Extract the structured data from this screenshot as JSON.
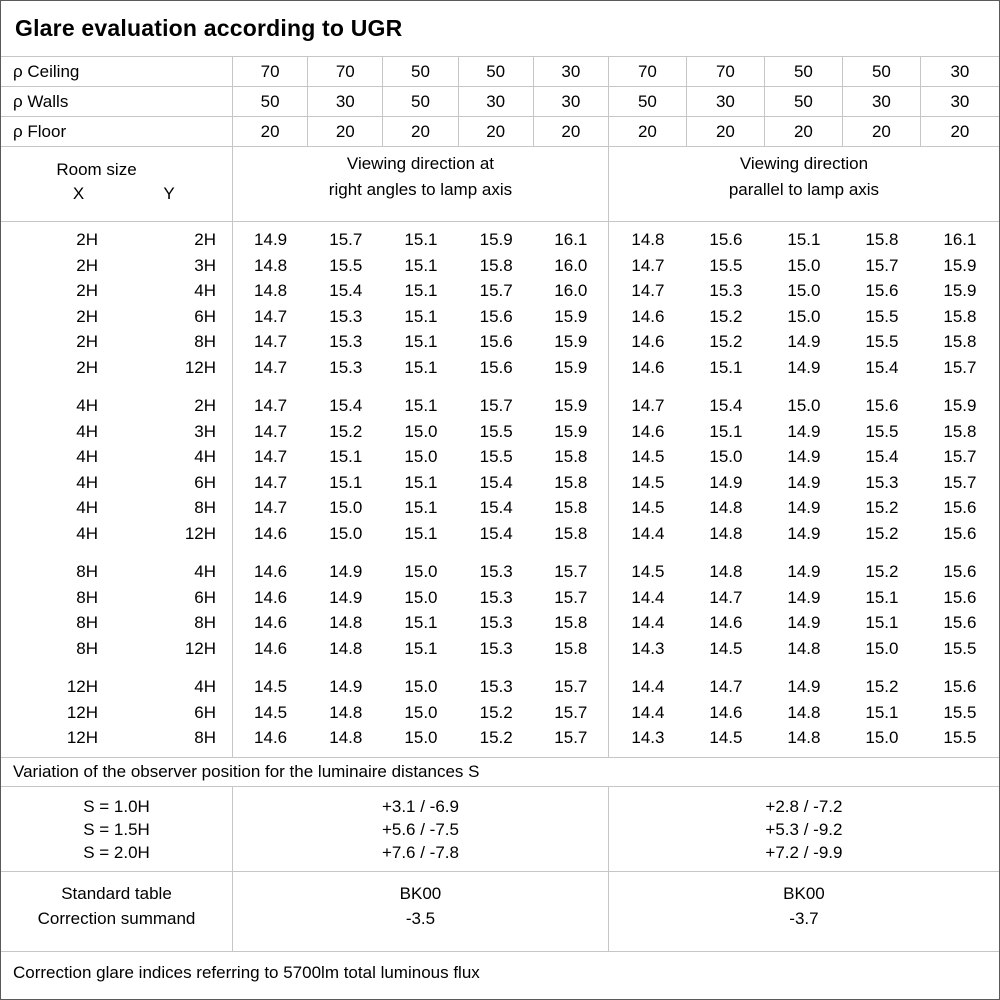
{
  "title": "Glare evaluation according to UGR",
  "reflectance_rows": [
    {
      "label": "ρ Ceiling",
      "values": [
        "70",
        "70",
        "50",
        "50",
        "30",
        "70",
        "70",
        "50",
        "50",
        "30"
      ]
    },
    {
      "label": "ρ Walls",
      "values": [
        "50",
        "30",
        "50",
        "30",
        "30",
        "50",
        "30",
        "50",
        "30",
        "30"
      ]
    },
    {
      "label": "ρ Floor",
      "values": [
        "20",
        "20",
        "20",
        "20",
        "20",
        "20",
        "20",
        "20",
        "20",
        "20"
      ]
    }
  ],
  "room_size": {
    "title": "Room size",
    "x": "X",
    "y": "Y"
  },
  "viewing_headers": {
    "right_angles": "Viewing direction at\nright angles to lamp axis",
    "parallel": "Viewing direction\nparallel to lamp axis"
  },
  "ugr_groups": [
    {
      "rows": [
        {
          "x": "2H",
          "y": "2H",
          "values": [
            "14.9",
            "15.7",
            "15.1",
            "15.9",
            "16.1",
            "14.8",
            "15.6",
            "15.1",
            "15.8",
            "16.1"
          ]
        },
        {
          "x": "2H",
          "y": "3H",
          "values": [
            "14.8",
            "15.5",
            "15.1",
            "15.8",
            "16.0",
            "14.7",
            "15.5",
            "15.0",
            "15.7",
            "15.9"
          ]
        },
        {
          "x": "2H",
          "y": "4H",
          "values": [
            "14.8",
            "15.4",
            "15.1",
            "15.7",
            "16.0",
            "14.7",
            "15.3",
            "15.0",
            "15.6",
            "15.9"
          ]
        },
        {
          "x": "2H",
          "y": "6H",
          "values": [
            "14.7",
            "15.3",
            "15.1",
            "15.6",
            "15.9",
            "14.6",
            "15.2",
            "15.0",
            "15.5",
            "15.8"
          ]
        },
        {
          "x": "2H",
          "y": "8H",
          "values": [
            "14.7",
            "15.3",
            "15.1",
            "15.6",
            "15.9",
            "14.6",
            "15.2",
            "14.9",
            "15.5",
            "15.8"
          ]
        },
        {
          "x": "2H",
          "y": "12H",
          "values": [
            "14.7",
            "15.3",
            "15.1",
            "15.6",
            "15.9",
            "14.6",
            "15.1",
            "14.9",
            "15.4",
            "15.7"
          ]
        }
      ]
    },
    {
      "rows": [
        {
          "x": "4H",
          "y": "2H",
          "values": [
            "14.7",
            "15.4",
            "15.1",
            "15.7",
            "15.9",
            "14.7",
            "15.4",
            "15.0",
            "15.6",
            "15.9"
          ]
        },
        {
          "x": "4H",
          "y": "3H",
          "values": [
            "14.7",
            "15.2",
            "15.0",
            "15.5",
            "15.9",
            "14.6",
            "15.1",
            "14.9",
            "15.5",
            "15.8"
          ]
        },
        {
          "x": "4H",
          "y": "4H",
          "values": [
            "14.7",
            "15.1",
            "15.0",
            "15.5",
            "15.8",
            "14.5",
            "15.0",
            "14.9",
            "15.4",
            "15.7"
          ]
        },
        {
          "x": "4H",
          "y": "6H",
          "values": [
            "14.7",
            "15.1",
            "15.1",
            "15.4",
            "15.8",
            "14.5",
            "14.9",
            "14.9",
            "15.3",
            "15.7"
          ]
        },
        {
          "x": "4H",
          "y": "8H",
          "values": [
            "14.7",
            "15.0",
            "15.1",
            "15.4",
            "15.8",
            "14.5",
            "14.8",
            "14.9",
            "15.2",
            "15.6"
          ]
        },
        {
          "x": "4H",
          "y": "12H",
          "values": [
            "14.6",
            "15.0",
            "15.1",
            "15.4",
            "15.8",
            "14.4",
            "14.8",
            "14.9",
            "15.2",
            "15.6"
          ]
        }
      ]
    },
    {
      "rows": [
        {
          "x": "8H",
          "y": "4H",
          "values": [
            "14.6",
            "14.9",
            "15.0",
            "15.3",
            "15.7",
            "14.5",
            "14.8",
            "14.9",
            "15.2",
            "15.6"
          ]
        },
        {
          "x": "8H",
          "y": "6H",
          "values": [
            "14.6",
            "14.9",
            "15.0",
            "15.3",
            "15.7",
            "14.4",
            "14.7",
            "14.9",
            "15.1",
            "15.6"
          ]
        },
        {
          "x": "8H",
          "y": "8H",
          "values": [
            "14.6",
            "14.8",
            "15.1",
            "15.3",
            "15.8",
            "14.4",
            "14.6",
            "14.9",
            "15.1",
            "15.6"
          ]
        },
        {
          "x": "8H",
          "y": "12H",
          "values": [
            "14.6",
            "14.8",
            "15.1",
            "15.3",
            "15.8",
            "14.3",
            "14.5",
            "14.8",
            "15.0",
            "15.5"
          ]
        }
      ]
    },
    {
      "rows": [
        {
          "x": "12H",
          "y": "4H",
          "values": [
            "14.5",
            "14.9",
            "15.0",
            "15.3",
            "15.7",
            "14.4",
            "14.7",
            "14.9",
            "15.2",
            "15.6"
          ]
        },
        {
          "x": "12H",
          "y": "6H",
          "values": [
            "14.5",
            "14.8",
            "15.0",
            "15.2",
            "15.7",
            "14.4",
            "14.6",
            "14.8",
            "15.1",
            "15.5"
          ]
        },
        {
          "x": "12H",
          "y": "8H",
          "values": [
            "14.6",
            "14.8",
            "15.0",
            "15.2",
            "15.7",
            "14.3",
            "14.5",
            "14.8",
            "15.0",
            "15.5"
          ]
        }
      ]
    }
  ],
  "variation_note": "Variation of the observer position for the luminaire distances S",
  "observer_variation": [
    {
      "s": "S = 1.0H",
      "right_angles": "+3.1 / -6.9",
      "parallel": "+2.8 / -7.2"
    },
    {
      "s": "S = 1.5H",
      "right_angles": "+5.6 / -7.5",
      "parallel": "+5.3 / -9.2"
    },
    {
      "s": "S = 2.0H",
      "right_angles": "+7.6 / -7.8",
      "parallel": "+7.2 / -9.9"
    }
  ],
  "standard_correction": {
    "labels": [
      "Standard table",
      "Correction summand"
    ],
    "right_angles": [
      "BK00",
      "-3.5"
    ],
    "parallel": [
      "BK00",
      "-3.7"
    ]
  },
  "footer_note": "Correction glare indices referring to 5700lm total luminous flux",
  "colors": {
    "background": "#ffffff",
    "text": "#000000",
    "grid_line": "#c6c6c6",
    "border": "#5a5a5a"
  }
}
